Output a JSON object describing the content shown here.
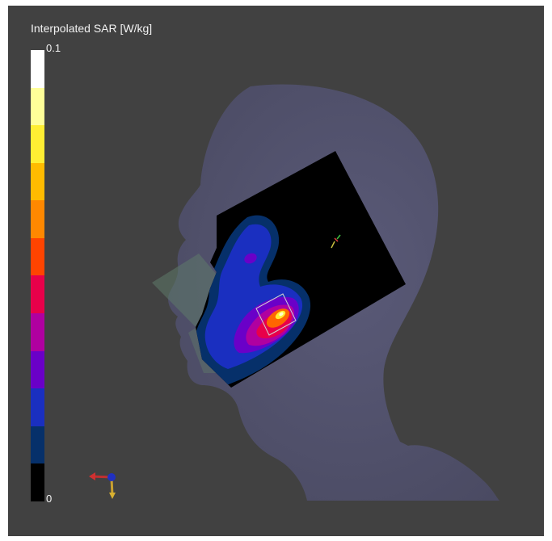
{
  "colorbar": {
    "title": "Interpolated SAR [W/kg]",
    "max_label": "0.1",
    "min_label": "0",
    "colors": [
      "#ffffff",
      "#ffff99",
      "#ffee33",
      "#ffbb00",
      "#ff8800",
      "#ff4400",
      "#e8004a",
      "#b000a0",
      "#6a00c8",
      "#1a2fc0",
      "#06306a",
      "#000000"
    ]
  },
  "scene": {
    "head_color": "#525270",
    "background_color": "#414141",
    "axis_icon": "orientation-axes-icon"
  }
}
